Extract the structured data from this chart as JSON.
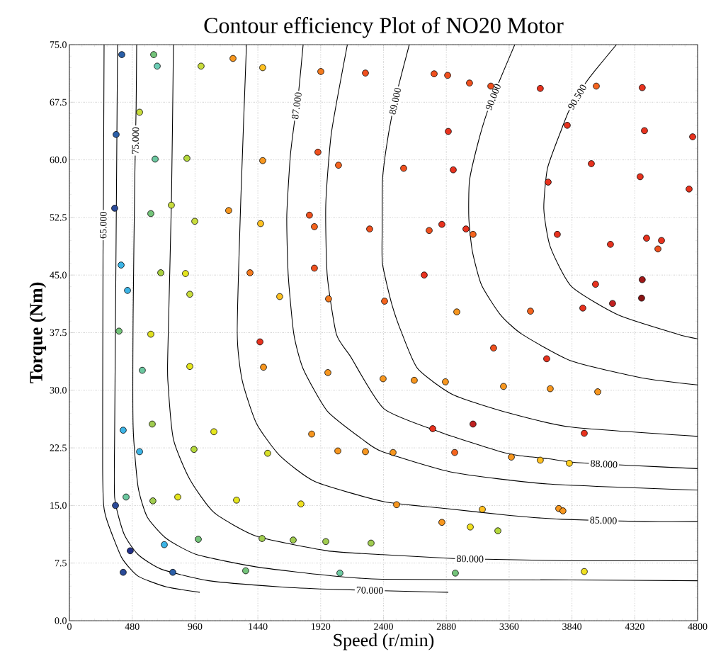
{
  "chart_data": {
    "type": "scatter",
    "title": "Contour efficiency Plot of NO20 Motor",
    "xlabel": "Speed (r/min)",
    "ylabel": "Torque (Nm)",
    "xlim": [
      0,
      4800
    ],
    "ylim": [
      0,
      75
    ],
    "xticks": [
      0,
      480,
      960,
      1440,
      1920,
      2400,
      2880,
      3360,
      3840,
      4320,
      4800
    ],
    "yticks": [
      {
        "value": 0,
        "label": "0.0"
      },
      {
        "value": 7.5,
        "label": "7.5"
      },
      {
        "value": 15,
        "label": "15.0"
      },
      {
        "value": 22.5,
        "label": "22.5"
      },
      {
        "value": 30,
        "label": "30.0"
      },
      {
        "value": 37.5,
        "label": "37.5"
      },
      {
        "value": 45,
        "label": "45.0"
      },
      {
        "value": 52.5,
        "label": "52.5"
      },
      {
        "value": 60,
        "label": "60.0"
      },
      {
        "value": 67.5,
        "label": "67.5"
      },
      {
        "value": 75,
        "label": "75.0"
      }
    ],
    "grid": true,
    "marker": "circle",
    "series": [
      {
        "x": [
          400,
          644,
          671,
          1006,
          1250,
          1477,
          1921,
          2262,
          536,
          357,
          655,
          898,
          1477,
          1899,
          2056,
          346,
          622,
          779,
          958,
          1217,
          1461,
          1834,
          1872,
          2294,
          395,
          698,
          887,
          1380,
          1872,
          444,
          920,
          1607,
          1980,
          2408,
          379,
          622,
          2787,
          2890,
          3057,
          3220,
          3598,
          4026,
          4377,
          2895,
          3804,
          4394,
          4762,
          2554,
          2933,
          3988,
          3658,
          4361,
          4735,
          2749,
          2846,
          3030,
          3084,
          3728,
          4134,
          4410,
          4524,
          4497,
          2711,
          4377,
          4020,
          4150,
          4372,
          2960,
          3523,
          3923,
          1456,
          557,
          920,
          1483,
          1975,
          2397,
          411,
          633,
          1104,
          1851,
          536,
          952,
          1515,
          2051,
          2262,
          433,
          352,
          638,
          828,
          1277,
          1769,
          465,
          725,
          985,
          1472,
          1710,
          1959,
          2305,
          411,
          790,
          1347,
          2067,
          3241,
          3647,
          2635,
          2873,
          3317,
          3674,
          4037,
          2776,
          3084,
          3934,
          2473,
          2944,
          3377,
          3598,
          3820,
          2500,
          2846,
          3063,
          3155,
          3274,
          3739,
          3771,
          2949,
          3934
        ],
        "values": [
          73.7,
          73.7,
          72.2,
          72.2,
          73.2,
          72.0,
          71.5,
          71.3,
          66.2,
          63.3,
          60.1,
          60.2,
          59.9,
          61.0,
          59.3,
          53.7,
          53.0,
          54.1,
          52.0,
          53.4,
          51.7,
          52.8,
          51.3,
          51.0,
          46.3,
          45.3,
          45.2,
          45.3,
          45.9,
          43.0,
          42.5,
          42.2,
          41.9,
          41.6,
          37.7,
          37.3,
          71.2,
          71.0,
          70.0,
          69.6,
          69.3,
          69.6,
          69.4,
          63.7,
          64.5,
          63.8,
          63.0,
          58.9,
          58.7,
          59.5,
          57.1,
          57.8,
          56.2,
          50.8,
          51.6,
          51.0,
          50.3,
          50.3,
          49.0,
          49.8,
          49.5,
          48.4,
          45.0,
          44.4,
          43.8,
          41.3,
          42.0,
          40.2,
          40.3,
          40.7,
          36.3,
          32.6,
          33.1,
          33.0,
          32.3,
          31.5,
          24.8,
          25.6,
          24.6,
          24.3,
          22.0,
          22.3,
          21.8,
          22.1,
          22.0,
          16.1,
          15.0,
          15.6,
          16.1,
          15.7,
          15.2,
          9.1,
          9.9,
          10.6,
          10.7,
          10.5,
          10.3,
          10.1,
          6.3,
          6.3,
          6.5,
          6.2,
          35.5,
          34.1,
          31.3,
          31.1,
          30.5,
          30.2,
          29.8,
          25.0,
          25.6,
          24.4,
          21.9,
          21.9,
          21.3,
          20.9,
          20.5,
          15.1,
          12.8,
          12.2,
          14.5,
          11.7,
          14.6,
          14.3,
          6.2,
          6.4
        ],
        "colors": [
          "#2b5fa8",
          "#74c47a",
          "#6ccdb5",
          "#c8dc3c",
          "#f7961e",
          "#ffc020",
          "#f57a1e",
          "#f0501e",
          "#c8dc3c",
          "#2b5fa8",
          "#6cc8a0",
          "#b4d83c",
          "#f7961e",
          "#f0501e",
          "#f5641e",
          "#2a4a98",
          "#74c47a",
          "#c8dc3c",
          "#c8dc3c",
          "#f7961e",
          "#ffc020",
          "#f0501e",
          "#f5641e",
          "#f0501e",
          "#3cb4e6",
          "#a8d040",
          "#e6e61e",
          "#f57a1e",
          "#f0501e",
          "#3cb4e6",
          "#c8dc3c",
          "#ffc020",
          "#f57a1e",
          "#f5641e",
          "#74c47a",
          "#e0e020",
          "#f0501e",
          "#f0501e",
          "#f0501e",
          "#f0501e",
          "#e8321e",
          "#f5641e",
          "#e8321e",
          "#e8321e",
          "#e8321e",
          "#e8321e",
          "#e8321e",
          "#f0501e",
          "#e8321e",
          "#e8321e",
          "#e8321e",
          "#e8321e",
          "#e8321e",
          "#f0501e",
          "#e8321e",
          "#e8321e",
          "#f5641e",
          "#e8321e",
          "#e8321e",
          "#e8321e",
          "#e8321e",
          "#f0501e",
          "#e8321e",
          "#a01818",
          "#e8321e",
          "#c02020",
          "#8a1414",
          "#f7961e",
          "#f5641e",
          "#e8321e",
          "#e8321e",
          "#6cc8a0",
          "#e6e61e",
          "#f7961e",
          "#f7961e",
          "#f7961e",
          "#3cb4e6",
          "#a0cc50",
          "#e6e61e",
          "#f7961e",
          "#3cb4e6",
          "#b4d83c",
          "#d8e028",
          "#f7961e",
          "#f7961e",
          "#6cc8a0",
          "#2a4a98",
          "#a0cc50",
          "#e6e61e",
          "#e6e61e",
          "#f0e020",
          "#22308a",
          "#3cb4e6",
          "#74c47a",
          "#a0cc50",
          "#a0cc50",
          "#a0cc50",
          "#a0cc50",
          "#2a4a98",
          "#2b5fa8",
          "#74c47a",
          "#6cc8a0",
          "#f0501e",
          "#e8321e",
          "#f7961e",
          "#f7961e",
          "#f7961e",
          "#f7961e",
          "#f7961e",
          "#e8321e",
          "#c02020",
          "#e8321e",
          "#f7961e",
          "#f5641e",
          "#f7961e",
          "#ffc020",
          "#ffd020",
          "#f7961e",
          "#f7961e",
          "#f0e020",
          "#ffc020",
          "#b4d83c",
          "#f7961e",
          "#f7961e",
          "#74c47a",
          "#f0e020"
        ]
      },
      {
        "type": "line",
        "name": "65.000",
        "color": "#000000",
        "marker": "none",
        "x": [
          265,
          260,
          257,
          255,
          254,
          262,
          292,
          400,
          525,
          741,
          996
        ],
        "values": [
          75,
          55,
          48,
          35,
          20,
          15,
          12.8,
          8.2,
          5.8,
          4.4,
          3.7
        ]
      },
      {
        "type": "line",
        "name": "70.000",
        "color": "#000000",
        "marker": "none",
        "x": [
          368,
          357,
          346,
          346,
          417,
          525,
          703,
          1066,
          1607,
          1970,
          2620,
          2895
        ],
        "values": [
          75,
          50,
          25,
          16,
          11.3,
          8.6,
          6.7,
          5.2,
          4.4,
          4.1,
          3.8,
          3.7
        ]
      },
      {
        "type": "line",
        "name": "75.000",
        "color": "#000000",
        "marker": "none",
        "x": [
          514,
          510,
          500,
          487,
          487,
          525,
          595,
          741,
          974,
          1429,
          1970,
          2392,
          3837,
          4800
        ],
        "values": [
          75,
          67,
          58,
          40,
          25.2,
          17.4,
          13.5,
          10.7,
          8.6,
          7.0,
          5.9,
          5.4,
          5.3,
          5.2
        ]
      },
      {
        "type": "line",
        "name": "80.000",
        "color": "#000000",
        "marker": "none",
        "x": [
          795,
          780,
          752,
          752,
          795,
          920,
          1104,
          1429,
          1970,
          2392,
          2933,
          3190,
          3837,
          4800
        ],
        "values": [
          75,
          55,
          35,
          31.3,
          23.6,
          18.4,
          14.1,
          11.0,
          9.1,
          8.6,
          8.1,
          8.0,
          7.8,
          7.8
        ]
      },
      {
        "type": "line",
        "name": "85.000",
        "color": "#000000",
        "marker": "none",
        "x": [
          1353,
          1310,
          1282,
          1320,
          1429,
          1607,
          1878,
          2403,
          2879,
          3366,
          3761,
          4400,
          4800
        ],
        "values": [
          75,
          55,
          37.5,
          31.3,
          25.7,
          21.5,
          18.1,
          15.5,
          14.6,
          13.7,
          13.2,
          12.9,
          12.9
        ]
      },
      {
        "type": "line",
        "name": "87.000",
        "color": "#000000",
        "marker": "none",
        "x": [
          1786,
          1753,
          1720,
          1688,
          1661,
          1672,
          1715,
          1786,
          1970,
          2240,
          2392,
          2933,
          3653,
          4800
        ],
        "values": [
          75,
          69.1,
          65,
          60.5,
          52.7,
          45.0,
          37.3,
          32.8,
          27.3,
          23.6,
          22.0,
          19.3,
          17.8,
          17.0
        ]
      },
      {
        "type": "line",
        "name": "88.000",
        "color": "#000000",
        "marker": "none",
        "x": [
          2124,
          2002,
          1959,
          1970,
          2040,
          2148,
          2403,
          2841,
          3295,
          3436,
          3653,
          3869,
          4300,
          4800
        ],
        "values": [
          75,
          63.5,
          54.2,
          45.0,
          37.3,
          34.4,
          27.6,
          24.5,
          22.0,
          21.5,
          21.1,
          20.6,
          20.2,
          19.8
        ]
      },
      {
        "type": "line",
        "name": "89.000",
        "color": "#000000",
        "marker": "none",
        "x": [
          2597,
          2516,
          2462,
          2419,
          2392,
          2390,
          2392,
          2462,
          2543,
          2662,
          2933,
          3366,
          3837,
          4800
        ],
        "values": [
          75,
          69.7,
          65.6,
          61.3,
          57.3,
          51,
          46.5,
          41.3,
          37.3,
          32.8,
          29.4,
          27.0,
          25.2,
          24.0
        ]
      },
      {
        "type": "line",
        "name": "90.000",
        "color": "#000000",
        "marker": "none",
        "x": [
          3403,
          3284,
          3192,
          3122,
          3057,
          3052,
          3079,
          3149,
          3295,
          3458,
          3837,
          4377,
          4800
        ],
        "values": [
          75,
          70.2,
          66.2,
          62.2,
          57.3,
          52.4,
          48.1,
          43.7,
          39.8,
          37.3,
          33.8,
          31.6,
          30.7
        ]
      },
      {
        "type": "line",
        "name": "90.500",
        "color": "#000000",
        "marker": "none",
        "x": [
          4180,
          4015,
          3940,
          3820,
          3761,
          3653,
          3625,
          3674,
          3837,
          4194,
          4648,
          4800
        ],
        "values": [
          75,
          71.6,
          69.9,
          66.5,
          64.0,
          58.9,
          53.6,
          48.7,
          43.5,
          39.8,
          37.3,
          36.7
        ]
      }
    ]
  }
}
